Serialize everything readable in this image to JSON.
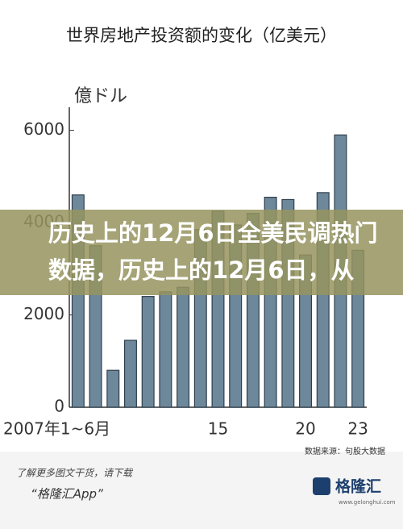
{
  "chart_data": {
    "type": "bar",
    "title": "世界房地产投资额的变化（亿美元）",
    "y_axis_label": "億ドル",
    "source": "数据来源：句股大数据",
    "categories": [
      "2007年1~6月",
      null,
      null,
      null,
      null,
      null,
      null,
      null,
      "15",
      null,
      null,
      null,
      null,
      "20",
      null,
      null,
      "23"
    ],
    "values": [
      4600,
      3500,
      800,
      1450,
      2400,
      2500,
      2600,
      3850,
      4250,
      3950,
      4200,
      4550,
      4500,
      3300,
      4650,
      5900,
      3400
    ],
    "color": "#6e889b",
    "ylim": [
      0,
      6500
    ],
    "yticks": [
      0,
      2000,
      4000,
      6000
    ],
    "grid": false
  },
  "overlay": {
    "headline": "历史上的12月6日全美民调热门数据，历史上的12月6日，从"
  },
  "footer": {
    "tip": "了解更多图文干货，请下载",
    "app": "“格隆汇App”",
    "logo": "格隆汇",
    "site": "www.gelonghui.com"
  }
}
